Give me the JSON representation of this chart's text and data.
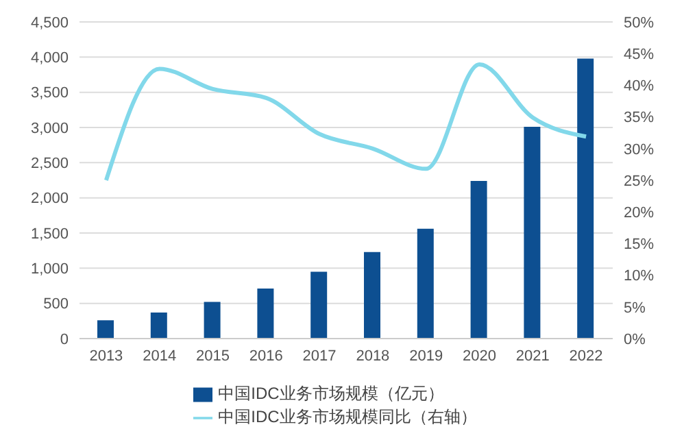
{
  "chart_data": {
    "type": "bar",
    "categories": [
      "2013",
      "2014",
      "2015",
      "2016",
      "2017",
      "2018",
      "2019",
      "2020",
      "2021",
      "2022"
    ],
    "series": [
      {
        "name": "中国IDC业务市场规模（亿元）",
        "color": "#0d4f91",
        "values": [
          260,
          370,
          520,
          710,
          950,
          1230,
          1560,
          2240,
          3010,
          3980
        ]
      },
      {
        "name": "中国IDC业务市场规模同比（右轴）",
        "type": "line",
        "axis": "y2",
        "color": "#82d8ea",
        "values": [
          25,
          42.6,
          39.4,
          38,
          32.3,
          30,
          26.8,
          43.3,
          34.9,
          31.9
        ]
      }
    ],
    "ylim": [
      0,
      4500
    ],
    "yticks": [
      0,
      500,
      {
        "value": 1000,
        "label": "1,000"
      },
      {
        "value": 1500,
        "label": "1,500"
      },
      {
        "value": 2000,
        "label": "2,000"
      },
      {
        "value": 2500,
        "label": "2,500"
      },
      {
        "value": 3000,
        "label": "3,000"
      },
      {
        "value": 3500,
        "label": "3,500"
      },
      {
        "value": 4000,
        "label": "4,000"
      },
      {
        "value": 4500,
        "label": "4,500"
      }
    ],
    "y2lim": [
      0,
      50
    ],
    "y2ticks": [
      {
        "value": 0,
        "label": "0%"
      },
      {
        "value": 5,
        "label": "5%"
      },
      {
        "value": 10,
        "label": "10%"
      },
      {
        "value": 15,
        "label": "15%"
      },
      {
        "value": 20,
        "label": "20%"
      },
      {
        "value": 25,
        "label": "25%"
      },
      {
        "value": 30,
        "label": "30%"
      },
      {
        "value": 35,
        "label": "35%"
      },
      {
        "value": 40,
        "label": "40%"
      },
      {
        "value": 45,
        "label": "45%"
      },
      {
        "value": 50,
        "label": "50%"
      }
    ],
    "grid": "y",
    "legend": "bottom",
    "marker": "none"
  }
}
